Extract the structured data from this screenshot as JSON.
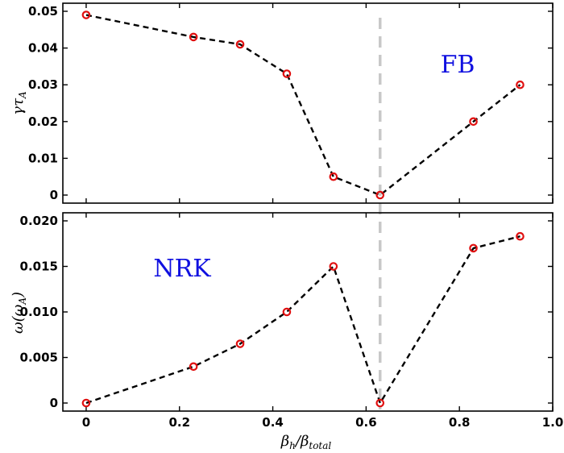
{
  "chart_data": [
    {
      "type": "line",
      "ylabel": "γτ_A",
      "ylim": [
        0,
        0.05
      ],
      "yticks": [
        "0",
        "0.01",
        "0.02",
        "0.03",
        "0.04",
        "0.05"
      ],
      "xlim": [
        -0.05,
        1.0
      ],
      "annotation": "FB",
      "x": [
        0,
        0.23,
        0.33,
        0.43,
        0.53,
        0.63,
        0.83,
        0.93
      ],
      "values": [
        0.049,
        0.043,
        0.041,
        0.033,
        0.005,
        0.0,
        0.02,
        0.03
      ],
      "line_style": "dashed",
      "line_color": "#000000",
      "marker": "circle",
      "marker_color": "#e01010",
      "vline_x": 0.63,
      "vline_color": "#c8c8c8"
    },
    {
      "type": "line",
      "ylabel": "ω(ω_A)",
      "xlabel": "β_h/β_total",
      "ylim": [
        0,
        0.02
      ],
      "yticks": [
        "0",
        "0.005",
        "0.010",
        "0.015",
        "0.020"
      ],
      "xlim": [
        -0.05,
        1.0
      ],
      "xticks": [
        "0",
        "0.2",
        "0.4",
        "0.6",
        "0.8",
        "1.0"
      ],
      "annotation": "NRK",
      "x": [
        0,
        0.23,
        0.33,
        0.43,
        0.53,
        0.63,
        0.83,
        0.93
      ],
      "values": [
        0.0,
        0.004,
        0.0065,
        0.01,
        0.015,
        0.0,
        0.017,
        0.0183
      ],
      "line_style": "dashed",
      "line_color": "#000000",
      "marker": "circle",
      "marker_color": "#e01010",
      "vline_x": 0.63,
      "vline_color": "#c8c8c8"
    }
  ]
}
